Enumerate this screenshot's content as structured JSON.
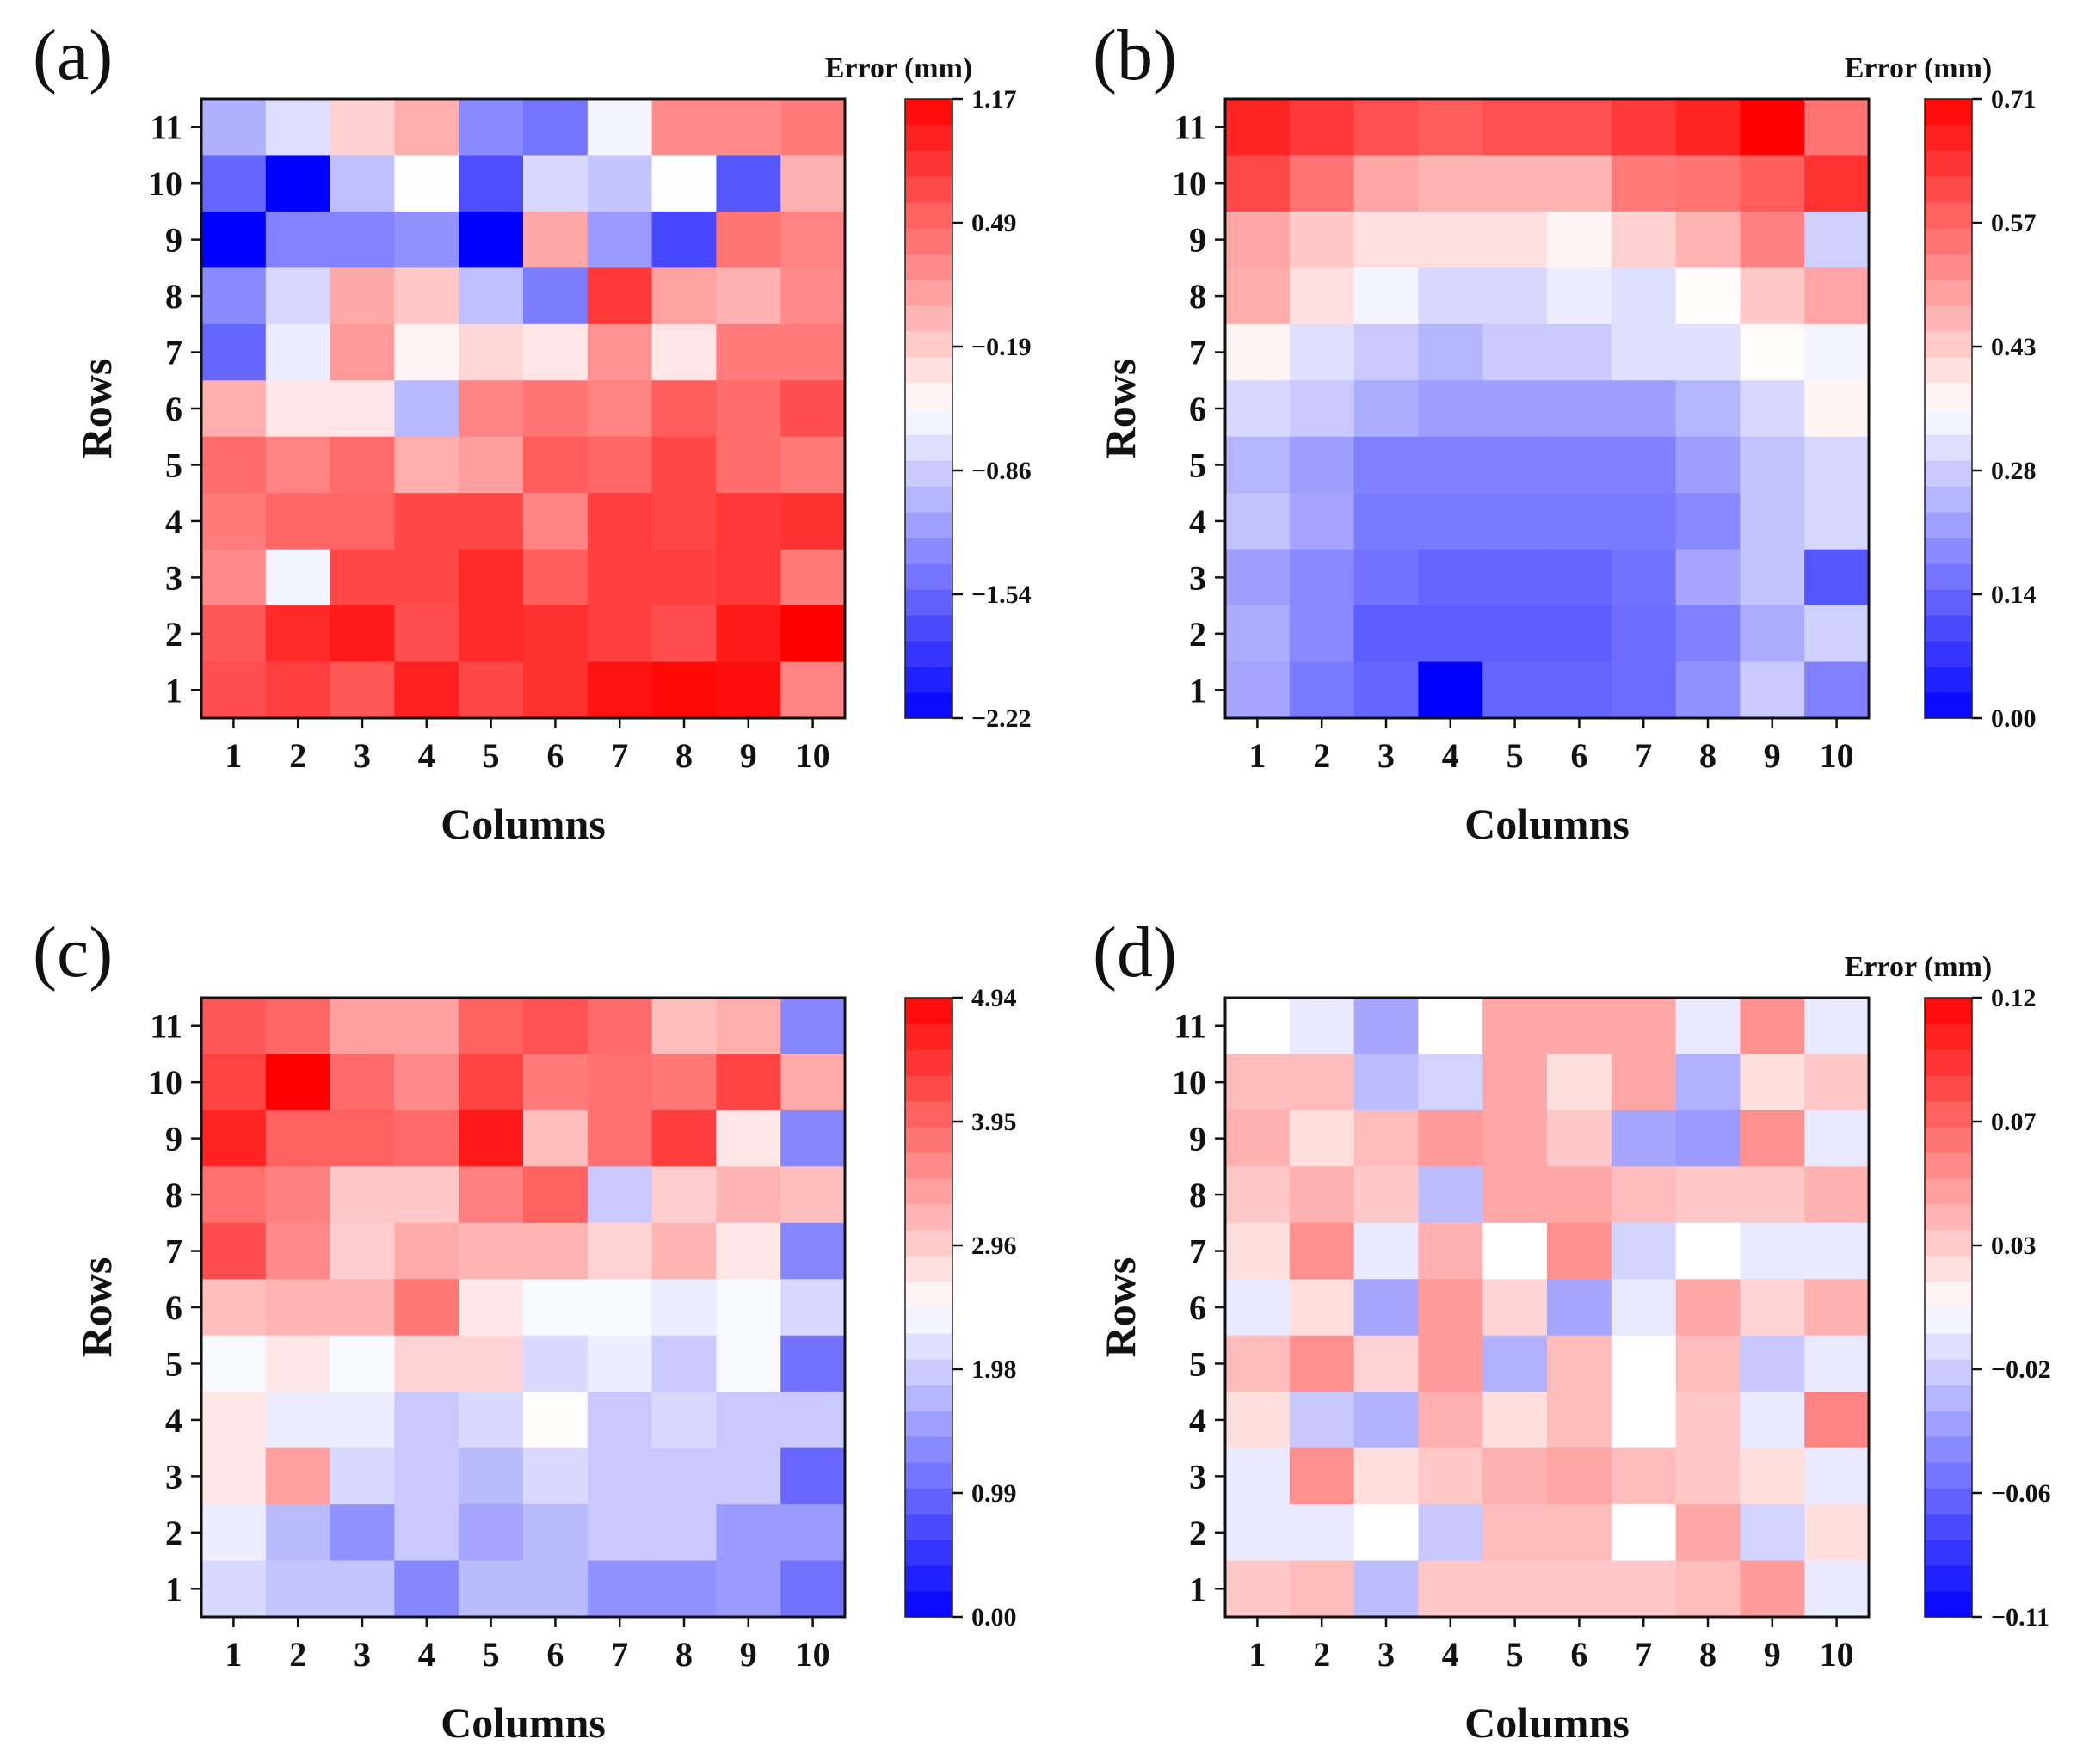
{
  "figure": {
    "background": "#ffffff"
  },
  "colormap": {
    "low": "#0000ff",
    "mid": "#ffffff",
    "high": "#ff0000"
  },
  "chart_data": [
    {
      "type": "heatmap",
      "panel_label": "(a)",
      "xlabel": "Columns",
      "ylabel": "Rows",
      "x_categories": [
        "1",
        "2",
        "3",
        "4",
        "5",
        "6",
        "7",
        "8",
        "9",
        "10"
      ],
      "y_categories": [
        "1",
        "2",
        "3",
        "4",
        "5",
        "6",
        "7",
        "8",
        "9",
        "10",
        "11"
      ],
      "colorbar": {
        "title": "Error (mm)",
        "min": -2.22,
        "max": 1.17,
        "ticks": [
          "1.17",
          "0.49",
          "−0.19",
          "−0.86",
          "−1.54",
          "−2.22"
        ]
      },
      "values_top_row_first": [
        [
          -1.05,
          -0.75,
          -0.22,
          0.02,
          -1.3,
          -1.45,
          -0.6,
          0.25,
          0.25,
          0.35
        ],
        [
          -1.55,
          -2.22,
          -0.95,
          -0.52,
          -1.7,
          -0.78,
          -0.92,
          -0.52,
          -1.65,
          0.0
        ],
        [
          -2.22,
          -1.35,
          -1.35,
          -1.25,
          -2.22,
          0.05,
          -1.2,
          -1.75,
          0.4,
          0.3
        ],
        [
          -1.3,
          -0.8,
          0.05,
          -0.15,
          -0.95,
          -1.4,
          0.8,
          0.1,
          0.0,
          0.25
        ],
        [
          -1.55,
          -0.65,
          0.15,
          -0.45,
          -0.25,
          -0.35,
          0.2,
          -0.35,
          0.35,
          0.35
        ],
        [
          0.02,
          -0.35,
          -0.35,
          -1.0,
          0.3,
          0.4,
          0.3,
          0.55,
          0.45,
          0.65
        ],
        [
          0.45,
          0.3,
          0.45,
          0.02,
          0.12,
          0.55,
          0.5,
          0.7,
          0.45,
          0.35
        ],
        [
          0.35,
          0.5,
          0.5,
          0.7,
          0.7,
          0.3,
          0.75,
          0.7,
          0.8,
          0.85
        ],
        [
          0.25,
          -0.6,
          0.7,
          0.7,
          0.9,
          0.55,
          0.75,
          0.75,
          0.8,
          0.35
        ],
        [
          0.6,
          0.9,
          1.0,
          0.65,
          0.9,
          0.85,
          0.75,
          0.65,
          1.0,
          1.17
        ],
        [
          0.65,
          0.75,
          0.6,
          0.95,
          0.7,
          0.85,
          1.05,
          1.12,
          1.08,
          0.3
        ]
      ]
    },
    {
      "type": "heatmap",
      "panel_label": "(b)",
      "xlabel": "Columns",
      "ylabel": "Rows",
      "x_categories": [
        "1",
        "2",
        "3",
        "4",
        "5",
        "6",
        "7",
        "8",
        "9",
        "10"
      ],
      "y_categories": [
        "1",
        "2",
        "3",
        "4",
        "5",
        "6",
        "7",
        "8",
        "9",
        "10",
        "11"
      ],
      "colorbar": {
        "title": "Error (mm)",
        "min": 0.0,
        "max": 0.71,
        "ticks": [
          "0.71",
          "0.57",
          "0.43",
          "0.28",
          "0.14",
          "0.00"
        ]
      },
      "values_top_row_first": [
        [
          0.66,
          0.63,
          0.6,
          0.58,
          0.6,
          0.6,
          0.63,
          0.66,
          0.71,
          0.55
        ],
        [
          0.61,
          0.55,
          0.48,
          0.46,
          0.46,
          0.46,
          0.54,
          0.55,
          0.58,
          0.64
        ],
        [
          0.48,
          0.43,
          0.4,
          0.4,
          0.4,
          0.37,
          0.42,
          0.46,
          0.53,
          0.29
        ],
        [
          0.47,
          0.4,
          0.34,
          0.3,
          0.3,
          0.33,
          0.31,
          0.36,
          0.43,
          0.48
        ],
        [
          0.37,
          0.31,
          0.28,
          0.25,
          0.28,
          0.28,
          0.31,
          0.31,
          0.36,
          0.34
        ],
        [
          0.3,
          0.28,
          0.24,
          0.22,
          0.22,
          0.22,
          0.22,
          0.25,
          0.3,
          0.37
        ],
        [
          0.25,
          0.22,
          0.18,
          0.18,
          0.18,
          0.18,
          0.18,
          0.22,
          0.27,
          0.3
        ],
        [
          0.27,
          0.23,
          0.17,
          0.17,
          0.17,
          0.17,
          0.17,
          0.19,
          0.27,
          0.3
        ],
        [
          0.22,
          0.19,
          0.16,
          0.14,
          0.14,
          0.14,
          0.16,
          0.23,
          0.27,
          0.12
        ],
        [
          0.24,
          0.19,
          0.13,
          0.13,
          0.13,
          0.13,
          0.15,
          0.18,
          0.24,
          0.29
        ],
        [
          0.23,
          0.17,
          0.14,
          0.0,
          0.14,
          0.14,
          0.15,
          0.2,
          0.28,
          0.18
        ]
      ]
    },
    {
      "type": "heatmap",
      "panel_label": "(c)",
      "xlabel": "Columns",
      "ylabel": "Rows",
      "x_categories": [
        "1",
        "2",
        "3",
        "4",
        "5",
        "6",
        "7",
        "8",
        "9",
        "10"
      ],
      "y_categories": [
        "1",
        "2",
        "3",
        "4",
        "5",
        "6",
        "7",
        "8",
        "9",
        "10",
        "11"
      ],
      "colorbar": {
        "title": "",
        "min": 0.0,
        "max": 4.94,
        "ticks": [
          "4.94",
          "3.95",
          "2.96",
          "1.98",
          "0.99",
          "0.00"
        ]
      },
      "values_top_row_first": [
        [
          4.1,
          3.95,
          3.4,
          3.4,
          4.0,
          4.15,
          3.9,
          3.1,
          3.25,
          1.3
        ],
        [
          4.3,
          4.94,
          3.9,
          3.6,
          4.3,
          3.75,
          3.85,
          3.8,
          4.3,
          3.3
        ],
        [
          4.6,
          4.0,
          4.0,
          3.9,
          4.7,
          3.1,
          3.85,
          4.35,
          2.7,
          1.3
        ],
        [
          3.85,
          3.7,
          3.0,
          3.0,
          3.7,
          4.0,
          1.95,
          2.95,
          3.2,
          3.1
        ],
        [
          4.2,
          3.6,
          2.95,
          3.3,
          3.2,
          3.2,
          2.9,
          3.2,
          2.7,
          1.3
        ],
        [
          3.1,
          3.2,
          3.2,
          3.8,
          2.7,
          2.4,
          2.4,
          2.3,
          2.4,
          2.1
        ],
        [
          2.4,
          2.7,
          2.4,
          2.9,
          2.9,
          2.1,
          2.3,
          1.95,
          2.4,
          1.1
        ],
        [
          2.7,
          2.3,
          2.3,
          1.95,
          2.1,
          2.5,
          1.95,
          2.1,
          1.95,
          1.95
        ],
        [
          2.7,
          3.4,
          2.1,
          1.95,
          1.8,
          2.1,
          1.95,
          1.95,
          1.95,
          1.0
        ],
        [
          2.3,
          1.8,
          1.4,
          1.95,
          1.6,
          1.8,
          1.95,
          1.95,
          1.5,
          1.5
        ],
        [
          2.1,
          1.9,
          1.9,
          1.3,
          1.8,
          1.8,
          1.4,
          1.4,
          1.5,
          1.1
        ]
      ]
    },
    {
      "type": "heatmap",
      "panel_label": "(d)",
      "xlabel": "Columns",
      "ylabel": "Rows",
      "x_categories": [
        "1",
        "2",
        "3",
        "4",
        "5",
        "6",
        "7",
        "8",
        "9",
        "10"
      ],
      "y_categories": [
        "1",
        "2",
        "3",
        "4",
        "5",
        "6",
        "7",
        "8",
        "9",
        "10",
        "11"
      ],
      "colorbar": {
        "title": "Error (mm)",
        "min": -0.11,
        "max": 0.12,
        "ticks": [
          "0.12",
          "0.07",
          "0.03",
          "−0.02",
          "−0.06",
          "−0.11"
        ]
      },
      "values_top_row_first": [
        [
          0.005,
          -0.005,
          -0.035,
          0.005,
          0.045,
          0.045,
          0.045,
          -0.005,
          0.055,
          -0.005
        ],
        [
          0.035,
          0.035,
          -0.025,
          -0.015,
          0.045,
          0.02,
          0.045,
          -0.03,
          0.02,
          0.03
        ],
        [
          0.04,
          0.02,
          0.035,
          0.05,
          0.045,
          0.03,
          -0.035,
          -0.04,
          0.055,
          -0.005
        ],
        [
          0.03,
          0.04,
          0.03,
          -0.025,
          0.045,
          0.045,
          0.035,
          0.03,
          0.03,
          0.04
        ],
        [
          0.02,
          0.055,
          -0.005,
          0.04,
          0.005,
          0.055,
          -0.015,
          0.005,
          -0.005,
          -0.005
        ],
        [
          -0.005,
          0.02,
          -0.035,
          0.05,
          0.025,
          -0.035,
          -0.005,
          0.045,
          0.025,
          0.04
        ],
        [
          0.035,
          0.055,
          0.025,
          0.05,
          -0.03,
          0.035,
          0.005,
          0.035,
          -0.02,
          -0.005
        ],
        [
          0.02,
          -0.02,
          -0.03,
          0.04,
          0.02,
          0.035,
          0.005,
          0.03,
          -0.005,
          0.06
        ],
        [
          -0.005,
          0.055,
          0.02,
          0.03,
          0.04,
          0.045,
          0.035,
          0.03,
          0.02,
          -0.005
        ],
        [
          -0.005,
          -0.005,
          0.005,
          -0.02,
          0.035,
          0.035,
          0.005,
          0.045,
          -0.015,
          0.02
        ],
        [
          0.03,
          0.035,
          -0.025,
          0.03,
          0.03,
          0.03,
          0.03,
          0.035,
          0.05,
          -0.005
        ]
      ]
    }
  ]
}
